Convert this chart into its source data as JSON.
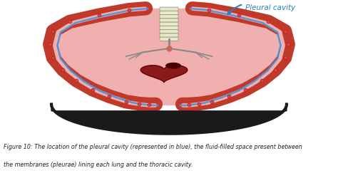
{
  "bg_color": "#ffffff",
  "lung_outer_color": "#c0392b",
  "lung_inner_color": "#f0b0b0",
  "pleural_color": "#4a90d9",
  "diaphragm_color": "#1a1a1a",
  "diaphragm_border": "#333333",
  "spine_fill": "#e8e8cc",
  "spine_edge": "#999977",
  "heart_color": "#8b1a1a",
  "heart_dark": "#4a0000",
  "bronchi_color": "#888888",
  "label_color": "#2980b9",
  "caption_color": "#222222",
  "caption_line1": "Figure 10: The location of the pleural cavity (represented in blue), the fluid-filled space present between",
  "caption_line2": "the membranes (pleurae) lining each lung and the thoracic cavity.",
  "pleural_label": "Pleural cavity",
  "dot_color": "#cc3333"
}
